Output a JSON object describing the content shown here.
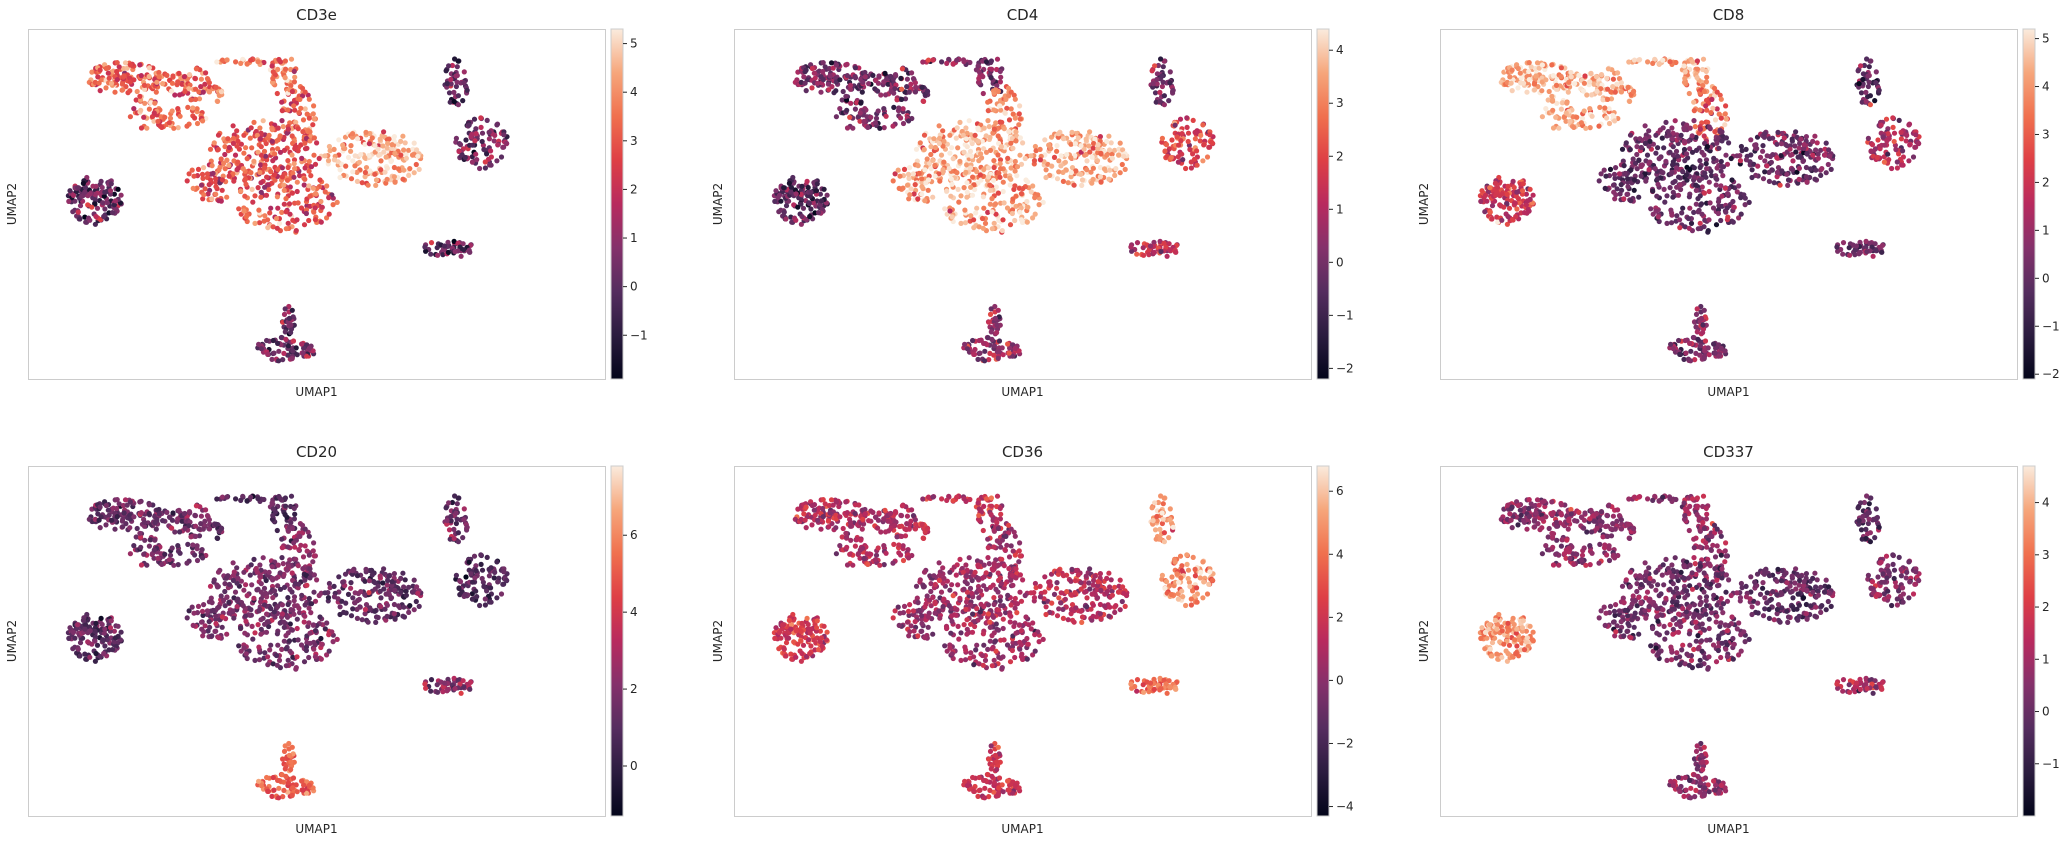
{
  "chart_data": [
    {
      "type": "scatter",
      "title": "CD3e",
      "xlabel": "UMAP1",
      "ylabel": "UMAP2",
      "colorbar": {
        "ticks": [
          -1,
          0,
          1,
          2,
          3,
          4,
          5
        ],
        "range": [
          -1.9,
          5.3
        ]
      },
      "cluster_values": {
        "A": 3.3,
        "B": 3.8,
        "C": 3.3,
        "D": 2.9,
        "E": 4.3,
        "F": 0.3,
        "G": 0.2,
        "H": 0.6,
        "I": 0.2,
        "J": 0.5
      },
      "spread": 0.9
    },
    {
      "type": "scatter",
      "title": "CD4",
      "xlabel": "UMAP1",
      "ylabel": "UMAP2",
      "colorbar": {
        "ticks": [
          -2,
          -1,
          0,
          1,
          2,
          3,
          4
        ],
        "range": [
          -2.2,
          4.4
        ]
      },
      "cluster_values": {
        "A": 0.0,
        "B": 0.2,
        "C": 3.2,
        "D": 3.6,
        "E": 3.6,
        "F": -0.4,
        "G": 0.0,
        "H": 1.8,
        "I": 1.2,
        "J": 0.6
      },
      "spread": 0.8
    },
    {
      "type": "scatter",
      "title": "CD8",
      "xlabel": "UMAP1",
      "ylabel": "UMAP2",
      "colorbar": {
        "ticks": [
          -2,
          -1,
          0,
          1,
          2,
          3,
          4,
          5
        ],
        "range": [
          -2.1,
          5.2
        ]
      },
      "cluster_values": {
        "A": 4.4,
        "B": 4.2,
        "C": 3.4,
        "D": 0.1,
        "E": 0.2,
        "F": 2.0,
        "G": 0.0,
        "H": 1.2,
        "I": 0.2,
        "J": 0.6
      },
      "spread": 0.8
    },
    {
      "type": "scatter",
      "title": "CD20",
      "xlabel": "UMAP1",
      "ylabel": "UMAP2",
      "colorbar": {
        "ticks": [
          0,
          2,
          4,
          6
        ],
        "range": [
          -1.3,
          7.8
        ]
      },
      "cluster_values": {
        "A": 1.5,
        "B": 1.0,
        "C": 2.2,
        "D": 1.8,
        "E": 1.3,
        "F": 1.2,
        "G": 1.5,
        "H": 1.0,
        "I": 2.3,
        "J": 5.2
      },
      "spread": 0.8
    },
    {
      "type": "scatter",
      "title": "CD36",
      "xlabel": "UMAP1",
      "ylabel": "UMAP2",
      "colorbar": {
        "ticks": [
          -4,
          -2,
          0,
          2,
          4,
          6
        ],
        "range": [
          -4.3,
          6.8
        ]
      },
      "cluster_values": {
        "A": 1.0,
        "B": 1.5,
        "C": 0.5,
        "D": 0.5,
        "E": 1.3,
        "F": 2.2,
        "G": 5.0,
        "H": 4.6,
        "I": 4.2,
        "J": 1.8
      },
      "spread": 1.0
    },
    {
      "type": "scatter",
      "title": "CD337",
      "xlabel": "UMAP1",
      "ylabel": "UMAP2",
      "colorbar": {
        "ticks": [
          -1,
          0,
          1,
          2,
          3,
          4
        ],
        "range": [
          -2.0,
          4.7
        ]
      },
      "cluster_values": {
        "A": 0.6,
        "B": 0.8,
        "C": 0.6,
        "D": 0.2,
        "E": 0.0,
        "F": 3.6,
        "G": 0.0,
        "H": 0.4,
        "I": 1.1,
        "J": 0.8
      },
      "spread": 0.6
    }
  ]
}
